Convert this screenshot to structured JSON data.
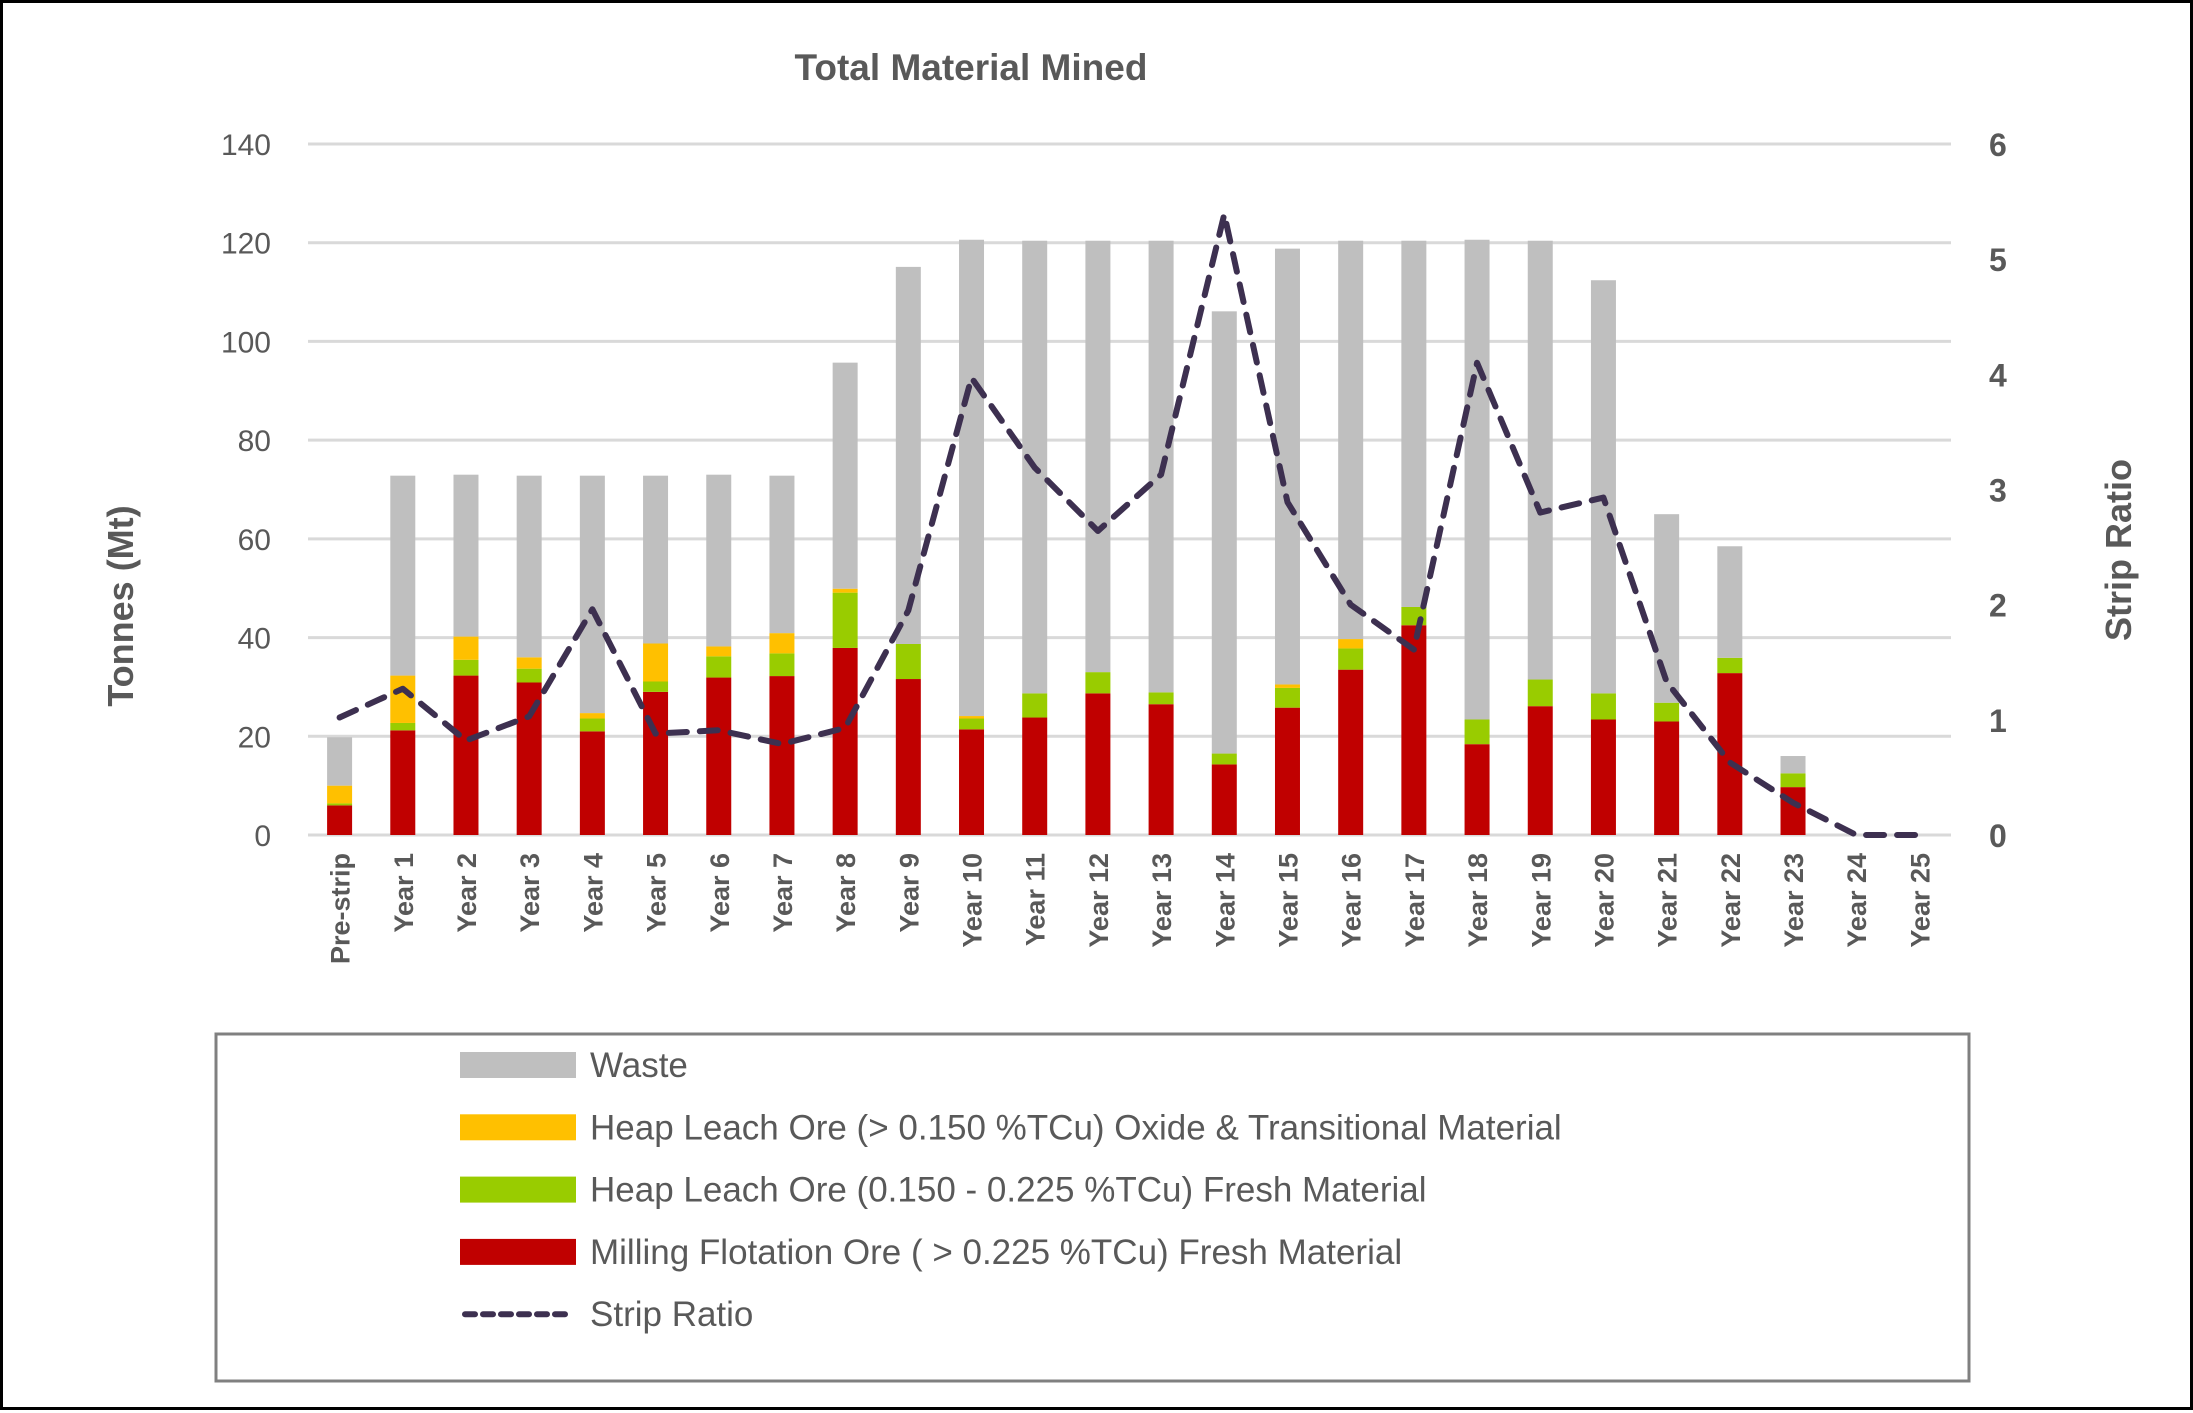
{
  "chart_data": {
    "type": "bar",
    "stacked": true,
    "title": "Total Material Mined",
    "ylabel": "Tonnes (Mt)",
    "y2label": "Strip Ratio",
    "ylim": [
      0,
      140
    ],
    "y2lim": [
      0,
      6
    ],
    "yticks": [
      "0",
      "20",
      "40",
      "60",
      "80",
      "100",
      "120",
      "140"
    ],
    "y2ticks": [
      "0",
      "1",
      "2",
      "3",
      "4",
      "5",
      "6"
    ],
    "grid": true,
    "legend_position": "bottom",
    "categories": [
      "Pre-strip",
      "Year 1",
      "Year 2",
      "Year 3",
      "Year 4",
      "Year 5",
      "Year 6",
      "Year 7",
      "Year 8",
      "Year 9",
      "Year 10",
      "Year 11",
      "Year 12",
      "Year 13",
      "Year 14",
      "Year 15",
      "Year 16",
      "Year 17",
      "Year 18",
      "Year 19",
      "Year 20",
      "Year 21",
      "Year 22",
      "Year 23",
      "Year 24",
      "Year 25"
    ],
    "series": [
      {
        "name": "Milling Flotation Ore ( > 0.225 %TCu)  Fresh Material",
        "color": "#C00000",
        "type": "bar",
        "values": [
          6.0,
          21.2,
          32.3,
          30.9,
          21.0,
          29.0,
          31.9,
          32.2,
          37.9,
          31.6,
          21.4,
          23.8,
          28.7,
          26.5,
          14.3,
          25.8,
          33.5,
          42.5,
          18.4,
          26.1,
          23.4,
          23.0,
          32.8,
          9.7,
          0,
          0
        ]
      },
      {
        "name": "Heap Leach Ore (0.150 - 0.225 %TCu)  Fresh Material",
        "color": "#99CC00",
        "type": "bar",
        "values": [
          0.4,
          1.5,
          3.2,
          2.8,
          2.6,
          2.1,
          4.3,
          4.6,
          11.2,
          7.1,
          2.2,
          4.9,
          4.3,
          2.4,
          2.2,
          4.0,
          4.3,
          3.7,
          5.0,
          5.4,
          5.3,
          3.8,
          3.1,
          2.8,
          0,
          0
        ]
      },
      {
        "name": "Heap Leach Ore (> 0.150 %TCu)  Oxide & Transitional Material",
        "color": "#FFC000",
        "type": "bar",
        "values": [
          3.6,
          9.6,
          4.7,
          2.3,
          1.1,
          7.7,
          2.0,
          4.1,
          0.8,
          0,
          0.5,
          0,
          0,
          0,
          0,
          0.7,
          1.9,
          0,
          0,
          0,
          0,
          0,
          0,
          0,
          0,
          0
        ]
      },
      {
        "name": "Waste",
        "color": "#BFBFBF",
        "type": "bar",
        "values": [
          9.8,
          40.5,
          32.8,
          36.8,
          48.1,
          34.0,
          34.8,
          31.9,
          45.8,
          76.4,
          96.5,
          91.7,
          87.4,
          91.5,
          89.6,
          88.3,
          80.7,
          74.2,
          97.2,
          88.9,
          83.7,
          38.2,
          22.6,
          3.5,
          0,
          0
        ]
      },
      {
        "name": "Strip Ratio",
        "color": "#3D3050",
        "type": "line",
        "axis": "right",
        "dashed": true,
        "values": [
          1.02,
          1.27,
          0.82,
          1.03,
          1.96,
          0.88,
          0.91,
          0.79,
          0.93,
          1.95,
          3.97,
          3.19,
          2.64,
          3.13,
          5.39,
          2.89,
          2.0,
          1.61,
          4.1,
          2.8,
          2.93,
          1.33,
          0.63,
          0.28,
          0,
          0
        ]
      }
    ],
    "legend_order": [
      3,
      2,
      1,
      0,
      4
    ]
  }
}
